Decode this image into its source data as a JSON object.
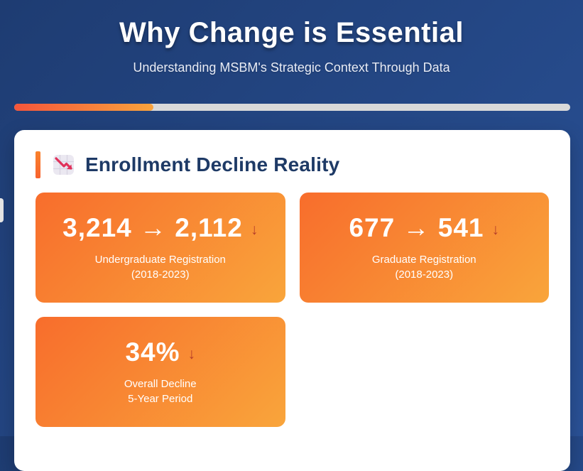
{
  "header": {
    "title": "Why Change is Essential",
    "subtitle": "Understanding MSBM's Strategic Context Through Data"
  },
  "progress": {
    "percent": 25
  },
  "section": {
    "icon": "chart-decreasing-emoji",
    "heading": "Enrollment Decline Reality"
  },
  "stats": [
    {
      "value": "3,214 → 2,112",
      "arrow": "↓",
      "label_line1": "Undergraduate Registration",
      "label_line2": "(2018-2023)"
    },
    {
      "value": "677 → 541",
      "arrow": "↓",
      "label_line1": "Graduate Registration",
      "label_line2": "(2018-2023)"
    },
    {
      "value": "34%",
      "arrow": "↓",
      "label_line1": "Overall Decline",
      "label_line2": "5-Year Period"
    }
  ],
  "colors": {
    "background_gradient_start": "#1e3c72",
    "background_gradient_end": "#2a5298",
    "card_gradient_start": "#f86d2c",
    "card_gradient_end": "#f9a53b",
    "progress_track": "#d9d9d9",
    "progress_fill_start": "#f4553b",
    "progress_fill_end": "#f9a33c",
    "heading_navy": "#1e3a66",
    "accent_orange": "#f8702d",
    "arrow_red": "#aa3028"
  }
}
